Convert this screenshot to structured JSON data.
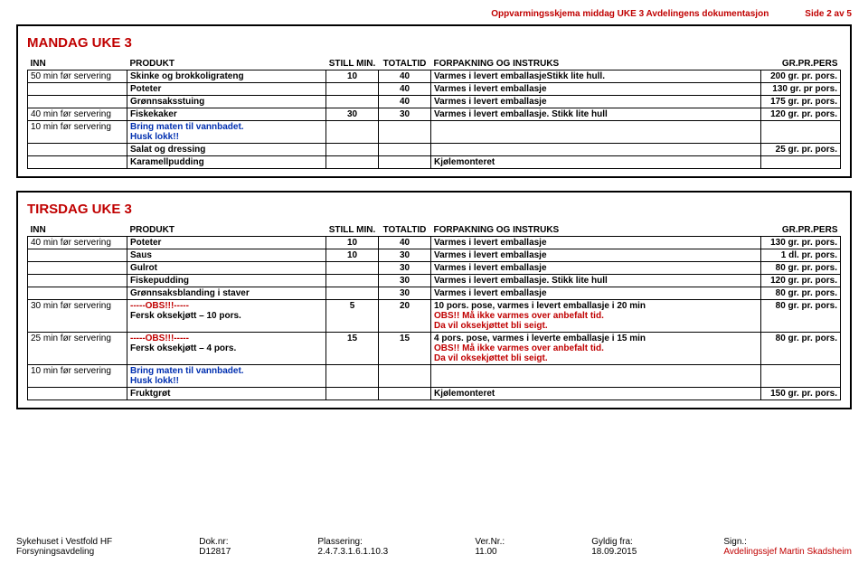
{
  "header": {
    "title": "Oppvarmingsskjema middag UKE 3 Avdelingens dokumentasjon",
    "page": "Side 2 av 5"
  },
  "columns": {
    "inn": "INN",
    "produkt": "PRODUKT",
    "still": "STILL MIN.",
    "totaltid": "TOTALTID",
    "instruks": "FORPAKNING OG INSTRUKS",
    "pers": "GR.PR.PERS"
  },
  "mandag": {
    "title": "MANDAG UKE 3",
    "rows": [
      {
        "inn": "50 min før servering",
        "produkt": "Skinke og brokkoligrateng",
        "still": "10",
        "totaltid": "40",
        "instruks": "Varmes i levert emballasjeStikk lite hull.",
        "pers": "200 gr. pr. pors."
      },
      {
        "inn": "",
        "produkt": "Poteter",
        "still": "",
        "totaltid": "40",
        "instruks": "Varmes i levert emballasje",
        "pers": "130 gr. pr pors."
      },
      {
        "inn": "",
        "produkt": "Grønnsaksstuing",
        "still": "",
        "totaltid": "40",
        "instruks": "Varmes i levert emballasje",
        "pers": "175 gr. pr. pors."
      },
      {
        "inn": "40 min før servering",
        "produkt": "Fiskekaker",
        "still": "30",
        "totaltid": "30",
        "instruks": "Varmes i levert emballasje. Stikk lite hull",
        "pers": "120 gr. pr. pors."
      },
      {
        "inn": "10 min før servering",
        "produkt": "Bring maten til vannbadet.\nHusk lokk!!",
        "instruks": "",
        "pers": ""
      },
      {
        "inn": "",
        "produkt": "Salat og dressing",
        "instruks": "",
        "pers": "25 gr. pr. pors."
      },
      {
        "inn": "",
        "produkt": "Karamellpudding",
        "instruks": "Kjølemonteret",
        "pers": ""
      }
    ]
  },
  "tirsdag": {
    "title": "TIRSDAG UKE 3",
    "rows": [
      {
        "inn": "40 min før servering",
        "produkt": "Poteter",
        "still": "10",
        "totaltid": "40",
        "instruks": "Varmes i levert emballasje",
        "pers": "130 gr. pr. pors."
      },
      {
        "inn": "",
        "produkt": "Saus",
        "still": "10",
        "totaltid": "30",
        "instruks": "Varmes i levert emballasje",
        "pers": "1 dl. pr. pors."
      },
      {
        "inn": "",
        "produkt": "Gulrot",
        "still": "",
        "totaltid": "30",
        "instruks": "Varmes i levert emballasje",
        "pers": "80 gr. pr. pors."
      },
      {
        "inn": "",
        "produkt": "Fiskepudding",
        "still": "",
        "totaltid": "30",
        "instruks": "Varmes i levert emballasje. Stikk lite hull",
        "pers": "120 gr. pr. pors."
      },
      {
        "inn": "",
        "produkt": "Grønnsaksblanding i staver",
        "still": "",
        "totaltid": "30",
        "instruks": "Varmes i levert emballasje",
        "pers": "80 gr. pr. pors."
      }
    ],
    "row_obs1": {
      "inn": "30 min før servering",
      "obs": "-----OBS!!!-----",
      "sub": "Fersk oksekjøtt – 10 pors.",
      "still": "5",
      "totaltid": "20",
      "ln1": "10 pors. pose, varmes i levert emballasje i 20 min",
      "ln2": "OBS!! Må ikke varmes over anbefalt tid.",
      "ln3": "Da vil oksekjøttet bli seigt.",
      "pers": "80 gr. pr. pors."
    },
    "row_obs2": {
      "inn": "25 min før servering",
      "obs": "-----OBS!!!-----",
      "sub": "Fersk oksekjøtt – 4 pors.",
      "still": "15",
      "totaltid": "15",
      "ln1": "4 pors. pose, varmes i leverte emballasje i 15 min",
      "ln2": "OBS!! Må ikke varmes over anbefalt tid.",
      "ln3": "Da vil oksekjøttet bli seigt.",
      "pers": "80 gr. pr. pors."
    },
    "row_bring": {
      "inn": "10 min før servering",
      "produkt": "Bring maten til vannbadet.\nHusk lokk!!"
    },
    "row_last": {
      "produkt": "Fruktgrøt",
      "instruks": "Kjølemonteret",
      "pers": "150 gr. pr. pors."
    }
  },
  "footer": {
    "c1a": "Sykehuset i Vestfold HF",
    "c1b": "Forsyningsavdeling",
    "c2a": "Dok.nr:",
    "c2b": "D12817",
    "c3a": "Plassering:",
    "c3b": "2.4.7.3.1.6.1.10.3",
    "c4a": "Ver.Nr.:",
    "c4b": "11.00",
    "c5a": "Gyldig fra:",
    "c5b": "18.09.2015",
    "c6a": "Sign.:",
    "c6b": "Avdelingssjef Martin Skadsheim"
  }
}
